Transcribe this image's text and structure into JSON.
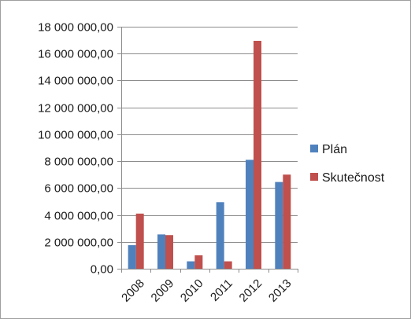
{
  "chart_data": {
    "type": "bar",
    "categories": [
      "2008",
      "2009",
      "2010",
      "2011",
      "2012",
      "2013"
    ],
    "series": [
      {
        "name": "Plán",
        "values": [
          1750000,
          2550000,
          550000,
          4950000,
          8100000,
          6450000
        ],
        "color": "#4f81bd"
      },
      {
        "name": "Skutečnost",
        "values": [
          4100000,
          2500000,
          1000000,
          550000,
          16950000,
          7000000
        ],
        "color": "#c0504d"
      }
    ],
    "ylim": [
      0,
      18000000
    ],
    "ytick_labels": [
      "0,00",
      "2 000 000,00",
      "4 000 000,00",
      "6 000 000,00",
      "8 000 000,00",
      "10 000 000,00",
      "12 000 000,00",
      "14 000 000,00",
      "16 000 000,00",
      "18 000 000,00"
    ],
    "grid": true,
    "legend_position": "right",
    "gridline_color": "#8c8c8c",
    "axis_color": "#8c8c8c"
  }
}
